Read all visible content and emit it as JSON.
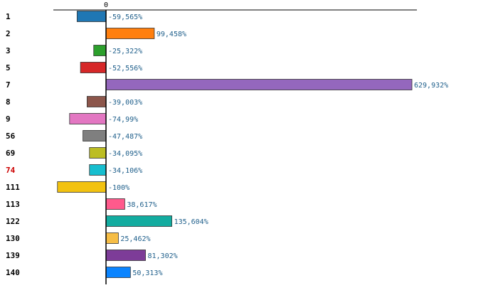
{
  "chart_data": {
    "type": "bar",
    "orientation": "horizontal",
    "title": "",
    "xlabel": "",
    "ylabel": "",
    "zero_tick_label": "0",
    "highlight_category": "74",
    "highlight_color": "#cc0000",
    "categories": [
      "1",
      "2",
      "3",
      "5",
      "7",
      "8",
      "9",
      "56",
      "69",
      "74",
      "111",
      "113",
      "122",
      "130",
      "139",
      "140"
    ],
    "values": [
      -59.565,
      99.458,
      -25.322,
      -52.556,
      629.932,
      -39.003,
      -74.99,
      -47.487,
      -34.095,
      -34.106,
      -100,
      38.617,
      135.604,
      25.462,
      81.302,
      50.313
    ],
    "value_labels": [
      "-59,565%",
      "99,458%",
      "-25,322%",
      "-52,556%",
      "629,932%",
      "-39,003%",
      "-74,99%",
      "-47,487%",
      "-34,095%",
      "-34,106%",
      "-100%",
      "38,617%",
      "135,604%",
      "25,462%",
      "81,302%",
      "50,313%"
    ],
    "colors": [
      "#1f77b4",
      "#ff7f0e",
      "#2ca02c",
      "#d62728",
      "#9467bd",
      "#8c564b",
      "#e377c2",
      "#7f7f7f",
      "#bcbd22",
      "#17becf",
      "#f2c210",
      "#ff5a8c",
      "#13aca0",
      "#f6bd45",
      "#7d3c98",
      "#0a84ff"
    ],
    "xlim": [
      -108,
      640
    ],
    "grid": false
  }
}
